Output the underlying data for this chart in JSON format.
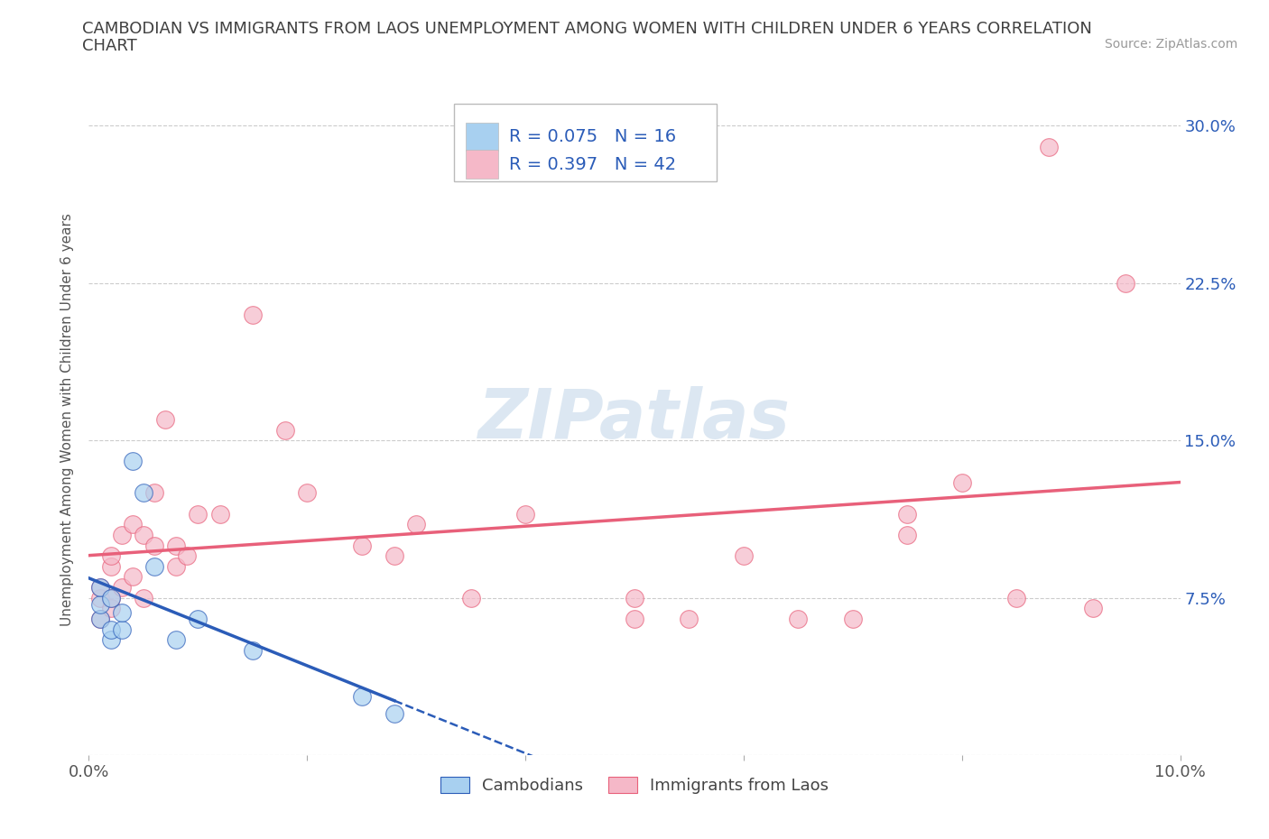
{
  "title_line1": "CAMBODIAN VS IMMIGRANTS FROM LAOS UNEMPLOYMENT AMONG WOMEN WITH CHILDREN UNDER 6 YEARS CORRELATION",
  "title_line2": "CHART",
  "source_text": "Source: ZipAtlas.com",
  "ylabel": "Unemployment Among Women with Children Under 6 years",
  "xlim": [
    0.0,
    0.1
  ],
  "ylim": [
    0.0,
    0.32
  ],
  "xticks": [
    0.0,
    0.02,
    0.04,
    0.06,
    0.08,
    0.1
  ],
  "xticklabels": [
    "0.0%",
    "",
    "",
    "",
    "",
    "10.0%"
  ],
  "yticks": [
    0.0,
    0.075,
    0.15,
    0.225,
    0.3
  ],
  "yticklabels": [
    "",
    "7.5%",
    "15.0%",
    "22.5%",
    "30.0%"
  ],
  "blue_scatter_color": "#a8d0f0",
  "pink_scatter_color": "#f5b8c8",
  "blue_line_color": "#2b5cb8",
  "pink_line_color": "#e8607a",
  "tick_label_color": "#2b5cb8",
  "title_color": "#404040",
  "source_color": "#999999",
  "grid_color": "#cccccc",
  "background_color": "#ffffff",
  "legend_R1": "R = 0.075",
  "legend_N1": "N = 16",
  "legend_R2": "R = 0.397",
  "legend_N2": "N = 42",
  "legend_label1": "Cambodians",
  "legend_label2": "Immigrants from Laos",
  "cambodian_x": [
    0.001,
    0.001,
    0.001,
    0.002,
    0.002,
    0.002,
    0.003,
    0.003,
    0.004,
    0.005,
    0.006,
    0.008,
    0.01,
    0.015,
    0.025,
    0.028
  ],
  "cambodian_y": [
    0.065,
    0.072,
    0.08,
    0.055,
    0.06,
    0.075,
    0.06,
    0.068,
    0.14,
    0.125,
    0.09,
    0.055,
    0.065,
    0.05,
    0.028,
    0.02
  ],
  "laos_x": [
    0.001,
    0.001,
    0.001,
    0.002,
    0.002,
    0.002,
    0.002,
    0.003,
    0.003,
    0.004,
    0.004,
    0.005,
    0.005,
    0.006,
    0.006,
    0.007,
    0.008,
    0.008,
    0.009,
    0.01,
    0.012,
    0.015,
    0.018,
    0.02,
    0.025,
    0.028,
    0.03,
    0.035,
    0.04,
    0.05,
    0.05,
    0.055,
    0.06,
    0.065,
    0.07,
    0.075,
    0.075,
    0.08,
    0.085,
    0.088,
    0.092,
    0.095
  ],
  "laos_y": [
    0.065,
    0.075,
    0.08,
    0.07,
    0.075,
    0.09,
    0.095,
    0.08,
    0.105,
    0.085,
    0.11,
    0.075,
    0.105,
    0.1,
    0.125,
    0.16,
    0.09,
    0.1,
    0.095,
    0.115,
    0.115,
    0.21,
    0.155,
    0.125,
    0.1,
    0.095,
    0.11,
    0.075,
    0.115,
    0.065,
    0.075,
    0.065,
    0.095,
    0.065,
    0.065,
    0.105,
    0.115,
    0.13,
    0.075,
    0.29,
    0.07,
    0.225
  ],
  "watermark_color": "#c5d8ea",
  "watermark_alpha": 0.6
}
